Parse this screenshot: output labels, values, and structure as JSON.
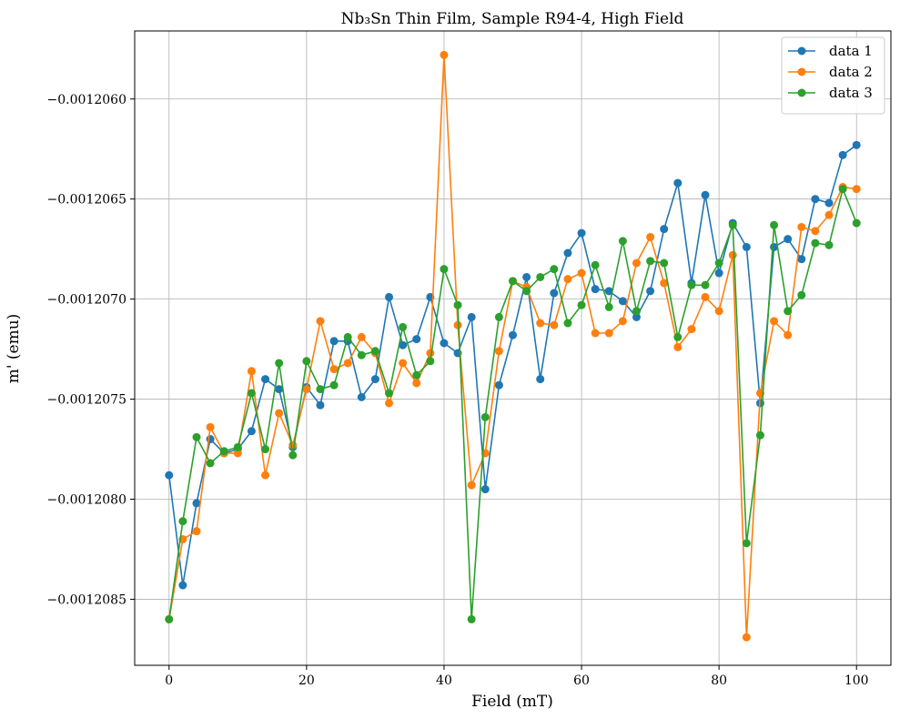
{
  "chart_data": {
    "type": "line",
    "title": "Nb₃Sn Thin Film, Sample R94-4, High Field",
    "xlabel": "Field (mT)",
    "ylabel": "m' (emu)",
    "xlim": [
      -5,
      105
    ],
    "ylim": [
      -0.00120883,
      -0.00120566
    ],
    "xticks": [
      0,
      20,
      40,
      60,
      80,
      100
    ],
    "xtick_labels": [
      "0",
      "20",
      "40",
      "60",
      "80",
      "100"
    ],
    "yticks": [
      -0.0012085,
      -0.001208,
      -0.0012075,
      -0.001207,
      -0.0012065,
      -0.001206
    ],
    "ytick_labels": [
      "−0.0012085",
      "−0.0012080",
      "−0.0012075",
      "−0.0012070",
      "−0.0012065",
      "−0.0012060"
    ],
    "grid": true,
    "legend_position": "top-right",
    "x": [
      0,
      2,
      4,
      6,
      8,
      10,
      12,
      14,
      16,
      18,
      20,
      22,
      24,
      26,
      28,
      30,
      32,
      34,
      36,
      38,
      40,
      42,
      44,
      46,
      48,
      50,
      52,
      54,
      56,
      58,
      60,
      62,
      64,
      66,
      68,
      70,
      72,
      74,
      76,
      78,
      80,
      82,
      84,
      86,
      88,
      90,
      92,
      94,
      96,
      98,
      100
    ],
    "series": [
      {
        "name": "data 1",
        "color": "#1f77b4",
        "values": [
          -0.00120788,
          -0.00120843,
          -0.00120802,
          -0.0012077,
          -0.00120777,
          -0.00120775,
          -0.00120766,
          -0.0012074,
          -0.00120745,
          -0.00120774,
          -0.00120744,
          -0.00120753,
          -0.00120721,
          -0.00120721,
          -0.00120749,
          -0.0012074,
          -0.00120699,
          -0.00120723,
          -0.0012072,
          -0.00120699,
          -0.00120722,
          -0.00120727,
          -0.00120709,
          -0.00120795,
          -0.00120743,
          -0.00120718,
          -0.00120689,
          -0.0012074,
          -0.00120697,
          -0.00120677,
          -0.00120667,
          -0.00120695,
          -0.00120696,
          -0.00120701,
          -0.00120709,
          -0.00120696,
          -0.00120665,
          -0.00120642,
          -0.00120692,
          -0.00120648,
          -0.00120687,
          -0.00120662,
          -0.00120674,
          -0.00120752,
          -0.00120674,
          -0.0012067,
          -0.0012068,
          -0.0012065,
          -0.00120652,
          -0.00120628,
          -0.00120623
        ]
      },
      {
        "name": "data 2",
        "color": "#ff7f0e",
        "values": [
          -0.0012086,
          -0.0012082,
          -0.00120816,
          -0.00120764,
          -0.00120777,
          -0.00120777,
          -0.00120736,
          -0.00120788,
          -0.00120757,
          -0.00120773,
          -0.00120745,
          -0.00120711,
          -0.00120735,
          -0.00120732,
          -0.00120719,
          -0.00120727,
          -0.00120752,
          -0.00120732,
          -0.00120742,
          -0.00120727,
          -0.00120578,
          -0.00120713,
          -0.00120793,
          -0.00120777,
          -0.00120726,
          -0.00120691,
          -0.00120694,
          -0.00120712,
          -0.00120713,
          -0.0012069,
          -0.00120687,
          -0.00120717,
          -0.00120717,
          -0.00120711,
          -0.00120682,
          -0.00120669,
          -0.00120692,
          -0.00120724,
          -0.00120715,
          -0.00120699,
          -0.00120706,
          -0.00120678,
          -0.00120869,
          -0.00120747,
          -0.00120711,
          -0.00120718,
          -0.00120664,
          -0.00120666,
          -0.00120658,
          -0.00120644,
          -0.00120645
        ]
      },
      {
        "name": "data 3",
        "color": "#2ca02c",
        "values": [
          -0.0012086,
          -0.00120811,
          -0.00120769,
          -0.00120782,
          -0.00120776,
          -0.00120774,
          -0.00120747,
          -0.00120775,
          -0.00120732,
          -0.00120778,
          -0.00120731,
          -0.00120745,
          -0.00120743,
          -0.00120719,
          -0.00120728,
          -0.00120726,
          -0.00120747,
          -0.00120714,
          -0.00120738,
          -0.00120731,
          -0.00120685,
          -0.00120703,
          -0.0012086,
          -0.00120759,
          -0.00120709,
          -0.00120691,
          -0.00120696,
          -0.00120689,
          -0.00120685,
          -0.00120712,
          -0.00120703,
          -0.00120683,
          -0.00120704,
          -0.00120671,
          -0.00120706,
          -0.00120681,
          -0.00120682,
          -0.00120719,
          -0.00120693,
          -0.00120693,
          -0.00120682,
          -0.00120663,
          -0.00120822,
          -0.00120768,
          -0.00120663,
          -0.00120706,
          -0.00120698,
          -0.00120672,
          -0.00120673,
          -0.00120645,
          -0.00120662
        ]
      }
    ]
  }
}
